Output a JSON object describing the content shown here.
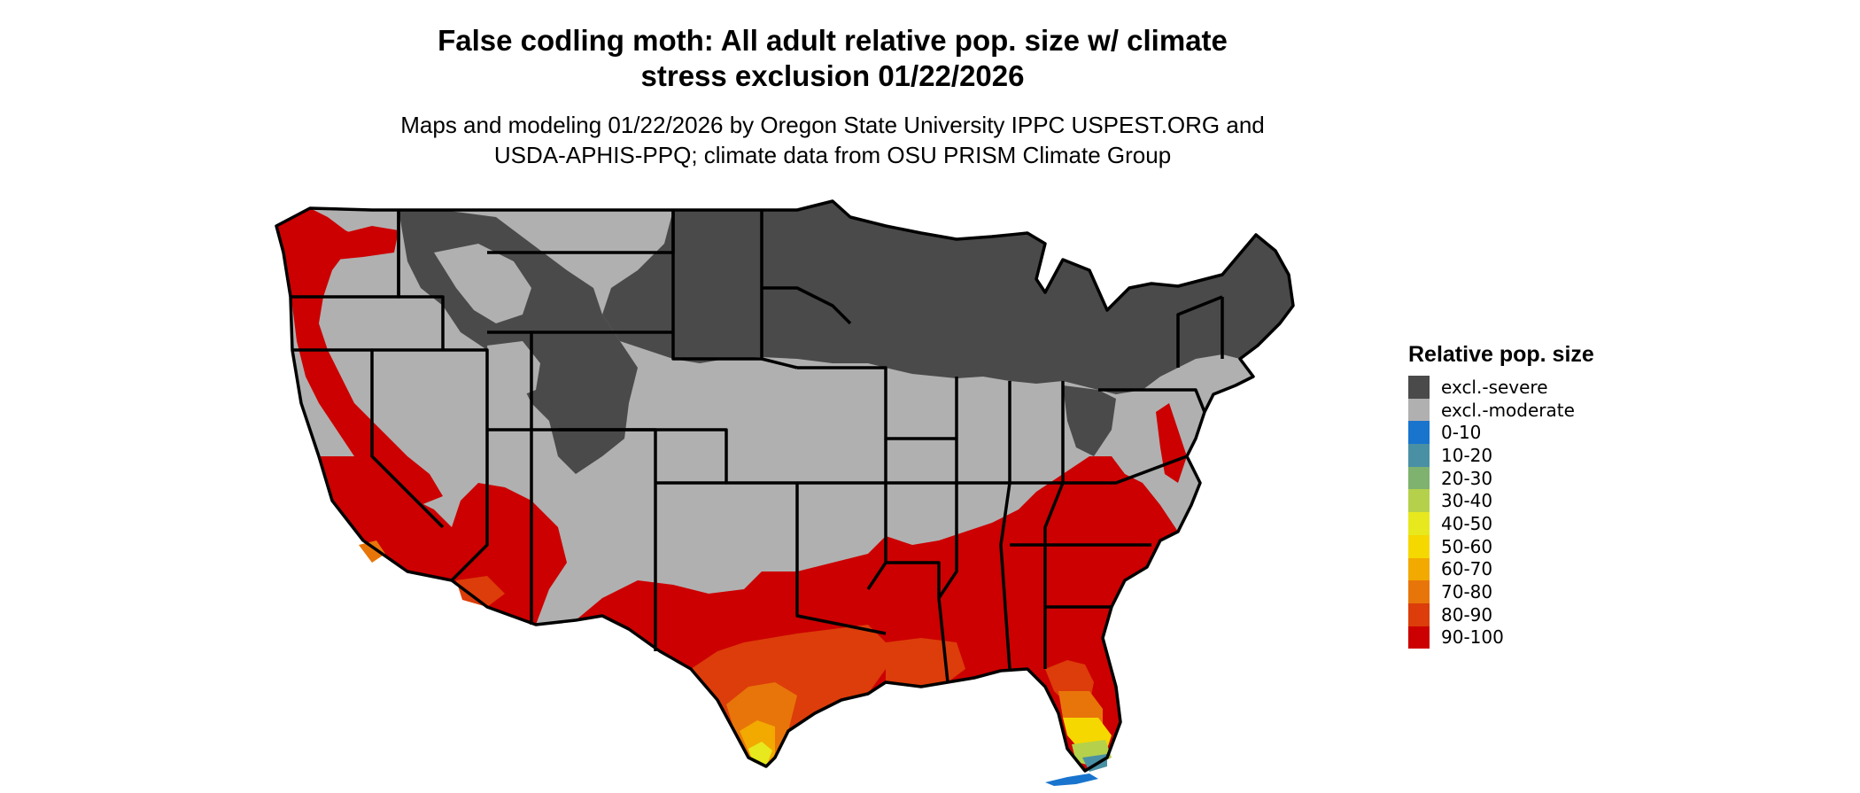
{
  "title": {
    "line1": "False codling moth: All adult relative pop. size w/ climate",
    "line2": "stress exclusion 01/22/2026"
  },
  "subtitle": {
    "line1": "Maps and modeling 01/22/2026 by Oregon State University IPPC USPEST.ORG and",
    "line2": "USDA-APHIS-PPQ; climate data from OSU PRISM Climate Group"
  },
  "legend": {
    "title": "Relative pop. size",
    "items": [
      {
        "label": "excl.-severe",
        "color": "#4a4a4a"
      },
      {
        "label": "excl.-moderate",
        "color": "#b0b0b0"
      },
      {
        "label": "0-10",
        "color": "#1874cd"
      },
      {
        "label": "10-20",
        "color": "#4a90a4"
      },
      {
        "label": "20-30",
        "color": "#7fb16f"
      },
      {
        "label": "30-40",
        "color": "#b5d14b"
      },
      {
        "label": "40-50",
        "color": "#e7e81e"
      },
      {
        "label": "50-60",
        "color": "#f5d800"
      },
      {
        "label": "60-70",
        "color": "#f2a900"
      },
      {
        "label": "70-80",
        "color": "#e8750a"
      },
      {
        "label": "80-90",
        "color": "#dc3d0a"
      },
      {
        "label": "90-100",
        "color": "#cc0000"
      }
    ]
  }
}
